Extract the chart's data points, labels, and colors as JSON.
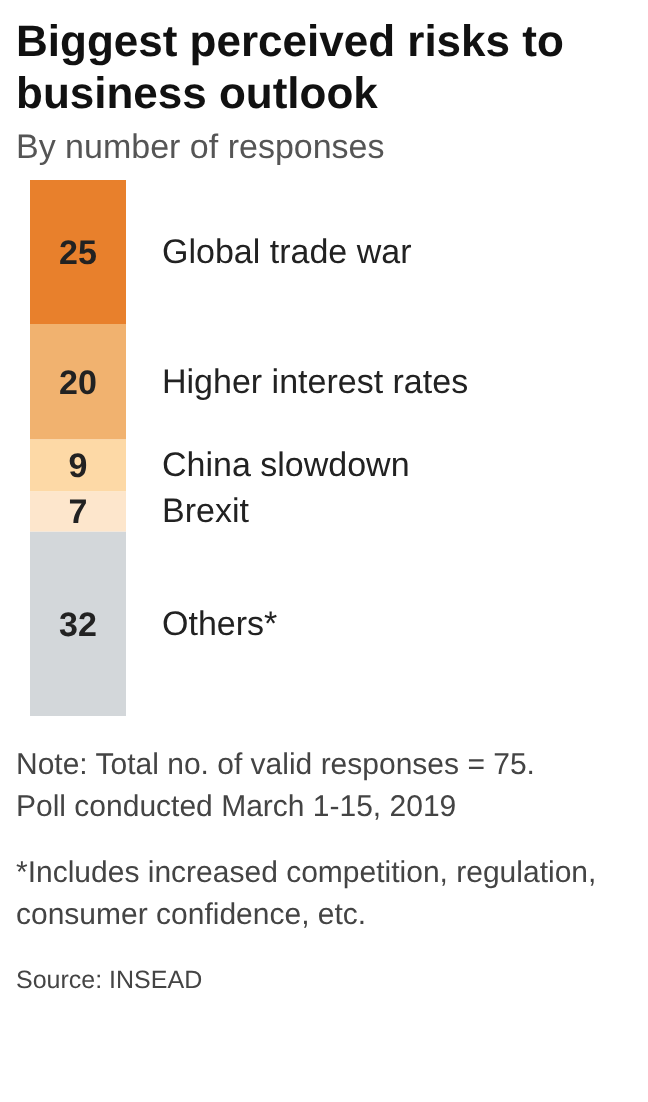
{
  "chart_data": {
    "type": "bar",
    "stacked": true,
    "title": "Biggest perceived risks to business outlook",
    "subtitle": "By number of responses",
    "categories": [
      null
    ],
    "data_labels": true,
    "series": [
      {
        "name": "Others*",
        "color": "#d3d7da",
        "values": [
          32
        ]
      },
      {
        "name": "Brexit",
        "color": "#fde6cc",
        "values": [
          7
        ]
      },
      {
        "name": "China slowdown",
        "color": "#fdd9a6",
        "values": [
          9
        ]
      },
      {
        "name": "Higher interest rates",
        "color": "#f1b26f",
        "values": [
          20
        ]
      },
      {
        "name": "Global trade war",
        "color": "#e8802c",
        "values": [
          25
        ]
      }
    ],
    "annotations": [
      "Note: Total no. of valid responses = 75.",
      "Poll conducted March 1-15, 2019",
      "*Includes increased competition, regulation, consumer confidence, etc.",
      "Source: INSEAD"
    ]
  }
}
